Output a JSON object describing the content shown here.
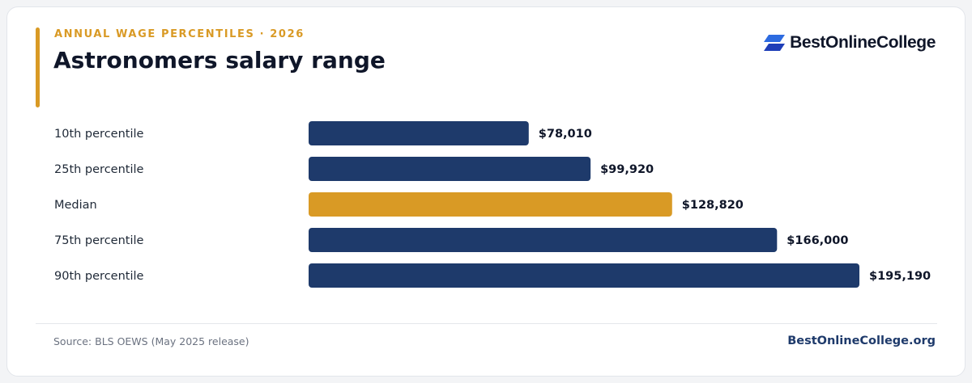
{
  "header": {
    "eyebrow": "ANNUAL WAGE PERCENTILES · 2026",
    "title": "Astronomers salary range"
  },
  "logo": {
    "text": "BestOnlineCollege",
    "icon": "logo-mark-icon",
    "colors": [
      "#2d6be0",
      "#1f3fb8"
    ]
  },
  "chart_data": {
    "type": "bar",
    "orientation": "horizontal",
    "categories": [
      "10th percentile",
      "25th percentile",
      "Median",
      "75th percentile",
      "90th percentile"
    ],
    "values": [
      78010,
      99920,
      128820,
      166000,
      195190
    ],
    "value_labels": [
      "$78,010",
      "$99,920",
      "$128,820",
      "$166,000",
      "$195,190"
    ],
    "highlight_category": "Median",
    "xlim": [
      0,
      195190
    ],
    "grid": false,
    "legend": "none",
    "colors": {
      "default": "#1e3a6b",
      "highlight": "#d99a25"
    }
  },
  "footer": {
    "source": "Source: BLS OEWS (May 2025 release)",
    "brand": "BestOnlineCollege.org"
  }
}
